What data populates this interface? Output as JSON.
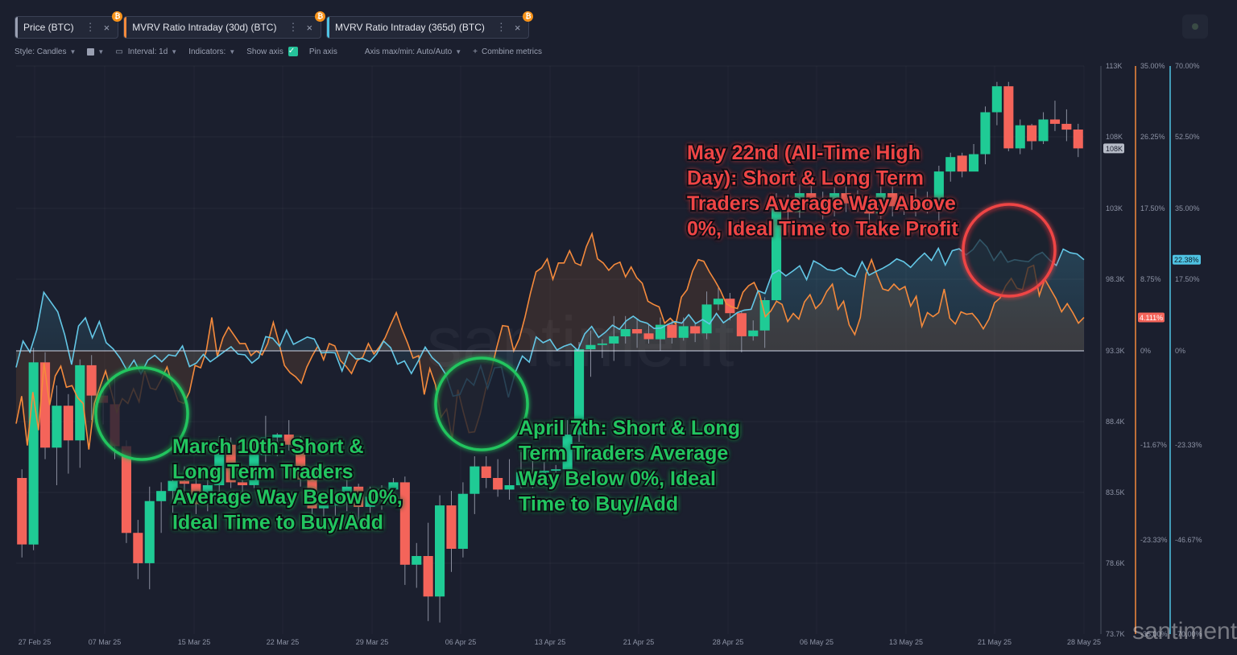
{
  "tabs": [
    {
      "label": "Price (BTC)",
      "color": "#9aa0b2",
      "close": "×",
      "menu": "⋮",
      "badge": "₿"
    },
    {
      "label": "MVRV Ratio Intraday (30d) (BTC)",
      "color": "#f58a3c",
      "close": "×",
      "menu": "⋮",
      "badge": "₿"
    },
    {
      "label": "MVRV Ratio Intraday (365d) (BTC)",
      "color": "#4fc3e3",
      "close": "×",
      "menu": "⋮",
      "badge": "₿"
    }
  ],
  "toolbar": {
    "style": "Style: Candles",
    "interval": "Interval: 1d",
    "indicators": "Indicators:",
    "show_axis": "Show axis",
    "pin_axis": "Pin axis",
    "axis_minmax": "Axis max/min: Auto/Auto",
    "combine": "Combine metrics"
  },
  "watermark": "santiment",
  "brand": "santiment",
  "chart_data": {
    "type": "candlestick+line",
    "x_labels": [
      "27 Feb 25",
      "07 Mar 25",
      "15 Mar 25",
      "22 Mar 25",
      "29 Mar 25",
      "06 Apr 25",
      "13 Apr 25",
      "21 Apr 25",
      "28 Apr 25",
      "06 May 25",
      "13 May 25",
      "21 May 25",
      "28 May 25"
    ],
    "price_axis": {
      "ticks": [
        "113K",
        "108K",
        "103K",
        "98.3K",
        "93.3K",
        "88.4K",
        "83.5K",
        "78.6K",
        "73.7K"
      ],
      "current": "108K"
    },
    "mvrv30_axis": {
      "ticks": [
        "35.00%",
        "26.25%",
        "17.50%",
        "8.75%",
        "0%",
        "-11.67%",
        "-23.33%",
        "-35.00%"
      ],
      "current": "4.111%",
      "color": "#f58a3c"
    },
    "mvrv365_axis": {
      "ticks": [
        "70.00%",
        "52.50%",
        "35.00%",
        "17.50%",
        "0%",
        "-23.33%",
        "-46.67%",
        "-70.00%"
      ],
      "current": "22.38%",
      "color": "#4fc3e3"
    },
    "candles": [
      [
        84.5,
        79.9,
        85.1,
        79.0
      ],
      [
        79.9,
        92.5,
        93.5,
        79.5
      ],
      [
        92.5,
        86.6,
        93.2,
        85.8
      ],
      [
        86.6,
        89.5,
        90.9,
        84.0
      ],
      [
        89.5,
        87.1,
        90.3,
        84.8
      ],
      [
        87.1,
        92.3,
        92.7,
        85.2
      ],
      [
        92.3,
        90.2,
        93.0,
        88.5
      ],
      [
        90.2,
        89.7,
        90.6,
        88.2
      ],
      [
        89.6,
        86.7,
        91.5,
        85.8
      ],
      [
        86.7,
        80.7,
        87.1,
        80.0
      ],
      [
        80.7,
        78.6,
        81.6,
        77.5
      ],
      [
        78.6,
        82.9,
        83.9,
        76.8
      ],
      [
        82.9,
        83.6,
        84.2,
        80.7
      ],
      [
        83.6,
        84.3,
        85.2,
        82.1
      ],
      [
        84.3,
        84.1,
        85.3,
        83.0
      ],
      [
        84.1,
        82.7,
        84.7,
        82.0
      ],
      [
        82.7,
        84.0,
        84.9,
        82.2
      ],
      [
        84.0,
        86.8,
        87.4,
        83.2
      ],
      [
        86.8,
        84.2,
        87.3,
        83.8
      ],
      [
        84.2,
        84.0,
        85.1,
        83.0
      ],
      [
        84.0,
        86.1,
        87.0,
        83.8
      ],
      [
        86.1,
        87.3,
        88.8,
        85.6
      ],
      [
        87.3,
        87.5,
        87.6,
        86.0
      ],
      [
        87.5,
        86.8,
        88.5,
        86.4
      ],
      [
        86.8,
        84.4,
        87.4,
        83.9
      ],
      [
        84.4,
        82.4,
        84.8,
        81.6
      ],
      [
        82.4,
        82.6,
        83.6,
        81.6
      ],
      [
        82.6,
        82.8,
        83.4,
        81.9
      ],
      [
        82.8,
        83.9,
        84.8,
        82.2
      ],
      [
        83.9,
        82.5,
        84.1,
        81.5
      ],
      [
        82.5,
        83.2,
        83.9,
        82.0
      ],
      [
        83.2,
        83.7,
        84.0,
        82.3
      ],
      [
        83.7,
        84.2,
        84.5,
        82.9
      ],
      [
        84.2,
        78.5,
        84.6,
        77.1
      ],
      [
        78.5,
        79.1,
        80.0,
        76.9
      ],
      [
        79.1,
        76.3,
        81.4,
        74.6
      ],
      [
        76.3,
        82.6,
        83.3,
        74.5
      ],
      [
        82.6,
        79.6,
        83.6,
        78.0
      ],
      [
        79.6,
        83.4,
        84.2,
        79.0
      ],
      [
        83.4,
        85.3,
        86.0,
        82.0
      ],
      [
        85.3,
        84.5,
        86.0,
        83.8
      ],
      [
        84.5,
        83.7,
        85.8,
        83.2
      ],
      [
        83.7,
        84.0,
        85.8,
        83.0
      ],
      [
        84.0,
        84.9,
        86.3,
        83.8
      ],
      [
        84.9,
        84.7,
        86.0,
        83.8
      ],
      [
        84.7,
        85.0,
        85.6,
        84.1
      ],
      [
        85.0,
        85.1,
        85.4,
        84.2
      ],
      [
        85.1,
        87.5,
        88.5,
        85.1
      ],
      [
        87.5,
        93.4,
        93.9,
        87.0
      ],
      [
        93.4,
        93.7,
        94.7,
        91.5
      ],
      [
        93.7,
        93.8,
        94.1,
        92.8
      ],
      [
        93.8,
        94.3,
        95.7,
        92.6
      ],
      [
        94.3,
        94.8,
        95.7,
        93.8
      ],
      [
        94.8,
        94.5,
        95.5,
        93.5
      ],
      [
        94.5,
        94.1,
        95.1,
        93.8
      ],
      [
        94.1,
        95.1,
        95.6,
        93.3
      ],
      [
        95.1,
        94.2,
        95.4,
        93.8
      ],
      [
        94.2,
        95.0,
        95.6,
        94.0
      ],
      [
        95.0,
        94.5,
        95.2,
        93.9
      ],
      [
        94.5,
        96.5,
        97.4,
        94.1
      ],
      [
        96.5,
        96.9,
        97.7,
        96.1
      ],
      [
        96.9,
        95.9,
        97.3,
        95.4
      ],
      [
        95.9,
        94.3,
        96.0,
        93.2
      ],
      [
        94.3,
        94.7,
        95.4,
        94.0
      ],
      [
        94.7,
        96.8,
        97.0,
        93.5
      ],
      [
        96.8,
        103.2,
        104.2,
        96.7
      ],
      [
        103.2,
        102.9,
        104.1,
        101.5
      ],
      [
        102.9,
        104.2,
        104.8,
        102.5
      ],
      [
        104.2,
        103.6,
        105.1,
        103.2
      ],
      [
        103.6,
        103.7,
        104.3,
        102.4
      ],
      [
        103.7,
        104.2,
        104.6,
        102.6
      ],
      [
        104.2,
        103.5,
        104.8,
        102.9
      ],
      [
        103.5,
        103.3,
        104.4,
        102.9
      ],
      [
        103.3,
        102.8,
        104.1,
        101.5
      ],
      [
        102.8,
        104.2,
        104.9,
        102.4
      ],
      [
        104.2,
        103.3,
        104.9,
        102.6
      ],
      [
        103.3,
        103.1,
        104.1,
        102.7
      ],
      [
        103.1,
        103.5,
        104.5,
        102.6
      ],
      [
        103.5,
        103.4,
        104.3,
        102.8
      ],
      [
        103.4,
        105.7,
        106.1,
        102.3
      ],
      [
        105.7,
        106.7,
        107.0,
        105.0
      ],
      [
        106.8,
        105.7,
        107.0,
        105.3
      ],
      [
        105.7,
        106.9,
        107.6,
        105.8
      ],
      [
        106.9,
        109.8,
        110.2,
        106.2
      ],
      [
        109.8,
        111.6,
        111.9,
        108.9
      ],
      [
        111.6,
        107.3,
        111.9,
        107.1
      ],
      [
        107.3,
        108.9,
        109.3,
        106.9
      ],
      [
        108.9,
        107.8,
        109.0,
        107.2
      ],
      [
        107.8,
        109.3,
        109.8,
        107.6
      ],
      [
        109.3,
        109.0,
        110.6,
        108.5
      ],
      [
        109.0,
        108.6,
        110.0,
        107.8
      ],
      [
        108.6,
        107.3,
        109.0,
        106.7
      ]
    ],
    "mvrv30": [
      -9.0,
      -5.6,
      -11.7,
      -5.1,
      -9.8,
      -1.5,
      -6.7,
      -3.1,
      -1.9,
      -4.5,
      -4.3,
      -5.8,
      -6.5,
      -12.2,
      -6.5,
      -4.5,
      -2.5,
      -5.0,
      -7.6,
      -5.9,
      -6.5,
      -4.7,
      -6.3,
      -2.5,
      -4.6,
      -4.8,
      -3.5,
      -2.0,
      -4.3,
      -6.2,
      -6.5,
      -5.1,
      -1.8,
      -2.1,
      -0.1,
      4.1,
      -0.7,
      1.6,
      2.9,
      1.9,
      0.9,
      0.9,
      -0.6,
      0.0,
      -0.5,
      0.9,
      3.5,
      1.0,
      -1.8,
      -2.7,
      -3.2,
      -4.0,
      -2.0,
      -0.6,
      0.6,
      -1.1,
      0.9,
      0.6,
      -1.2,
      -1.9,
      -2.8,
      -1.2,
      -0.8,
      0.9,
      -0.4,
      0.5,
      1.6,
      3.2,
      4.7,
      2.7,
      1.0,
      -0.9,
      -0.6,
      -5.4,
      -2.2,
      -4.2,
      -8.2,
      -7.2,
      -10.9,
      -4.8,
      -7.6,
      -10.1,
      -10.0,
      -7.8,
      -4.7,
      -2.4,
      0.5,
      3.1,
      3.0,
      0.0,
      1.5,
      4.1,
      7.1,
      9.7,
      10.2,
      11.3,
      8.8,
      10.8,
      10.8,
      12.3,
      10.8,
      10.5,
      12.8,
      14.4,
      11.3,
      10.8,
      9.9,
      10.6,
      10.9,
      9.1,
      10.3,
      9.0,
      8.3,
      6.1,
      5.7,
      5.4,
      3.4,
      4.0,
      3.3,
      6.6,
      7.5,
      9.8,
      11.2,
      11.0,
      9.7,
      8.6,
      7.4,
      5.8,
      5.4,
      5.2,
      7.2,
      8.0,
      8.4,
      6.9,
      4.2,
      4.9,
      6.1,
      5.7,
      3.6,
      4.6,
      3.9,
      6.0,
      6.9,
      5.2,
      5.9,
      7.3,
      8.2,
      5.1,
      6.1,
      3.2,
      2.0,
      4.1,
      9.4,
      11.2,
      9.3,
      7.6,
      7.4,
      8.2,
      7.5,
      7.9,
      5.5,
      6.7,
      3.0,
      4.7,
      4.2,
      4.7,
      7.6,
      4.0,
      3.3,
      4.8,
      4.5,
      4.6,
      3.8,
      2.7,
      3.9,
      5.9,
      6.5,
      8.0,
      8.9,
      7.7,
      7.5,
      10.2,
      10.5,
      6.8,
      8.8,
      7.6,
      6.4,
      4.8,
      5.8,
      4.7,
      3.4,
      4.1
    ],
    "mvrv365": [
      -4.1,
      2.4,
      -0.3,
      5.2,
      14.4,
      12.0,
      9.6,
      4.0,
      -3.4,
      6.1,
      8.1,
      3.2,
      7.2,
      2.0,
      0.5,
      -1.8,
      -4.9,
      -2.3,
      -5.7,
      -2.3,
      -1.1,
      -2.7,
      -1.0,
      -1.3,
      1.2,
      -3.9,
      -3.0,
      -0.9,
      -2.7,
      -1.5,
      -0.2,
      1.0,
      -0.8,
      -1.0,
      -3.0,
      -1.7,
      3.5,
      3.1,
      1.1,
      5.1,
      1.6,
      2.5,
      3.4,
      2.9,
      -0.5,
      -0.4,
      -0.5,
      -5.0,
      -0.3,
      -2.0,
      -1.9,
      -2.7,
      -0.8,
      2.4,
      0.8,
      -3.3,
      -2.5,
      -5.6,
      -2.5,
      0.9,
      -1.7,
      -3.2,
      -5.9,
      -11.2,
      -10.8,
      -6.9,
      -8.5,
      -3.7,
      -9.3,
      -4.2,
      -4.0,
      -11.5,
      -5.3,
      -1.3,
      -2.8,
      3.4,
      2.0,
      2.8,
      0.2,
      1.1,
      1.7,
      0.1,
      4.2,
      6.0,
      3.3,
      4.6,
      6.3,
      5.3,
      7.4,
      8.5,
      7.3,
      6.8,
      5.5,
      5.6,
      6.5,
      7.2,
      6.8,
      8.9,
      6.7,
      7.7,
      6.6,
      9.2,
      6.9,
      8.1,
      9.4,
      10.0,
      10.2,
      14.8,
      14.1,
      18.8,
      19.8,
      18.4,
      19.6,
      20.9,
      17.5,
      22.1,
      21.2,
      20.0,
      19.7,
      20.4,
      18.9,
      18.2,
      21.9,
      18.6,
      19.5,
      20.3,
      21.3,
      22.6,
      21.9,
      20.5,
      22.4,
      24.0,
      22.2,
      25.2,
      21.1,
      24.6,
      25.1,
      23.6,
      24.9,
      27.3,
      25.5,
      22.2,
      24.5,
      21.8,
      22.4,
      22.1,
      21.9,
      23.4,
      24.2,
      22.4,
      21.0,
      25.0,
      24.1,
      23.8,
      22.4
    ],
    "annotations": [
      {
        "text": "March 10th: Short & Long Term Traders Average Way Below 0%, Ideal Time to Buy/Add",
        "lines": [
          "March 10th: Short &",
          "Long Term Traders",
          "Average Way Below 0%,",
          "Ideal Time to Buy/Add"
        ],
        "color": "#22c55e"
      },
      {
        "text": "April 7th: Short & Long Term Traders Average Way Below 0%, Ideal Time to Buy/Add",
        "lines": [
          "April 7th: Short & Long",
          "Term Traders Average",
          "Way Below 0%, Ideal",
          "Time to Buy/Add"
        ],
        "color": "#22c55e"
      },
      {
        "text": "May 22nd (All-Time High Day): Short & Long Term Traders Average Way Above 0%, Ideal Time to Take Profit",
        "lines": [
          "May 22nd (All-Time High",
          "Day): Short & Long Term",
          "Traders Average Way Above",
          "0%, Ideal Time to Take Profit"
        ],
        "color": "#ef4444"
      }
    ]
  }
}
